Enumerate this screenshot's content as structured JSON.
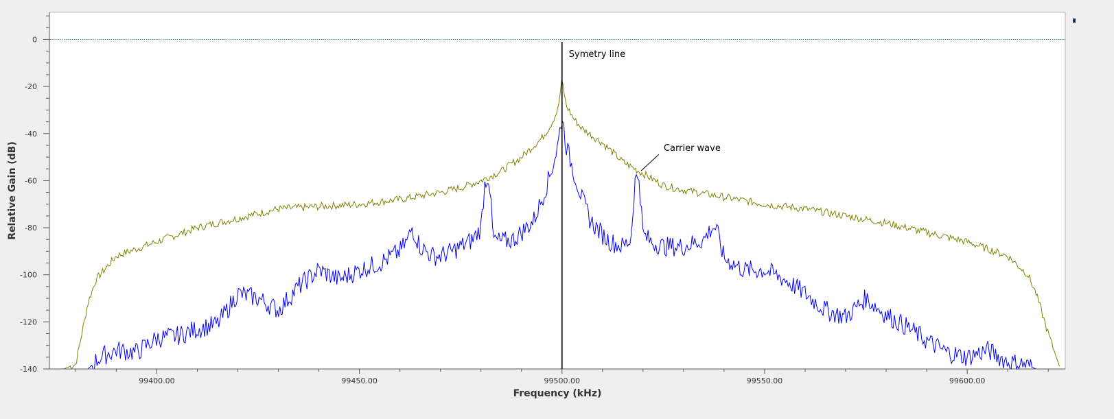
{
  "chart_data": {
    "type": "line",
    "title": "",
    "xlabel": "Frequency (kHz)",
    "ylabel": "Relative Gain (dB)",
    "xlim": [
      99373.5,
      99624.2
    ],
    "ylim": [
      -140,
      11.5
    ],
    "x_ticks": [
      {
        "value": 99400,
        "label": "99400.00"
      },
      {
        "value": 99450,
        "label": "99450.00"
      },
      {
        "value": 99500,
        "label": "99500.00"
      },
      {
        "value": 99550,
        "label": "99550.00"
      },
      {
        "value": 99600,
        "label": "99600.00"
      }
    ],
    "y_ticks": [
      {
        "value": 0,
        "label": "0"
      },
      {
        "value": -20,
        "label": "-20"
      },
      {
        "value": -40,
        "label": "-40"
      },
      {
        "value": -60,
        "label": "-60"
      },
      {
        "value": -80,
        "label": "-80"
      },
      {
        "value": -100,
        "label": "-100"
      },
      {
        "value": -120,
        "label": "-120"
      },
      {
        "value": -140,
        "label": "-140"
      }
    ],
    "grid": false,
    "reference_line": {
      "y": 0,
      "style": "dotted",
      "color": "#1a8fa0"
    },
    "series": [
      {
        "color": "#808000",
        "x": [
          99377,
          99380,
          99383,
          99385,
          99390,
          99400,
          99410,
          99420,
          99430,
          99440,
          99450,
          99460,
          99470,
          99475,
          99480,
          99485,
          99490,
          99495,
          99497,
          99499,
          99500,
          99501,
          99503,
          99505,
          99510,
          99515,
          99519,
          99520,
          99525,
          99530,
          99540,
          99550,
          99560,
          99570,
          99580,
          99590,
          99600,
          99610,
          99615,
          99617,
          99620,
          99623
        ],
        "y": [
          -140,
          -138,
          -112,
          -102,
          -92,
          -86,
          -80,
          -76,
          -72,
          -71,
          -70,
          -68,
          -65,
          -63,
          -60,
          -56,
          -50,
          -42,
          -37,
          -30,
          -17,
          -28,
          -34,
          -38,
          -44,
          -52,
          -56,
          -57,
          -62,
          -64,
          -67,
          -70,
          -72,
          -75,
          -78,
          -82,
          -86,
          -92,
          -100,
          -108,
          -125,
          -140
        ]
      },
      {
        "color": "#0000ff",
        "x": [
          99383,
          99386,
          99390,
          99395,
          99400,
          99405,
          99410,
          99415,
          99420,
          99425,
          99430,
          99435,
          99440,
          99445,
          99450,
          99455,
          99460,
          99462,
          99463,
          99465,
          99468,
          99470,
          99473,
          99475,
          99478,
          99480,
          99481,
          99482,
          99483,
          99485,
          99488,
          99490,
          99493,
          99495,
          99497,
          99499,
          99500,
          99501,
          99503,
          99505,
          99507,
          99510,
          99512,
          99515,
          99517,
          99518,
          99519,
          99520,
          99522,
          99525,
          99530,
          99535,
          99537,
          99538,
          99540,
          99545,
          99550,
          99555,
          99560,
          99565,
          99570,
          99575,
          99580,
          99585,
          99590,
          99595,
          99600,
          99605,
          99610,
          99614,
          99617
        ],
        "y": [
          -140,
          -135,
          -132,
          -133,
          -127,
          -126,
          -123,
          -121,
          -108,
          -110,
          -115,
          -105,
          -98,
          -102,
          -98,
          -95,
          -90,
          -85,
          -80,
          -88,
          -92,
          -92,
          -90,
          -88,
          -85,
          -80,
          -60,
          -58,
          -85,
          -86,
          -85,
          -82,
          -77,
          -68,
          -58,
          -45,
          -32,
          -45,
          -57,
          -68,
          -77,
          -83,
          -86,
          -88,
          -85,
          -60,
          -58,
          -83,
          -86,
          -88,
          -88,
          -85,
          -80,
          -80,
          -93,
          -98,
          -98,
          -102,
          -108,
          -115,
          -118,
          -110,
          -117,
          -122,
          -128,
          -133,
          -135,
          -132,
          -137,
          -138,
          -140
        ]
      }
    ],
    "annotations": [
      {
        "text": "Symetry line",
        "x": 99500,
        "type": "vertical-line"
      },
      {
        "text": "Carrier wave",
        "x": 99519,
        "y": -57,
        "type": "arrow"
      }
    ]
  }
}
